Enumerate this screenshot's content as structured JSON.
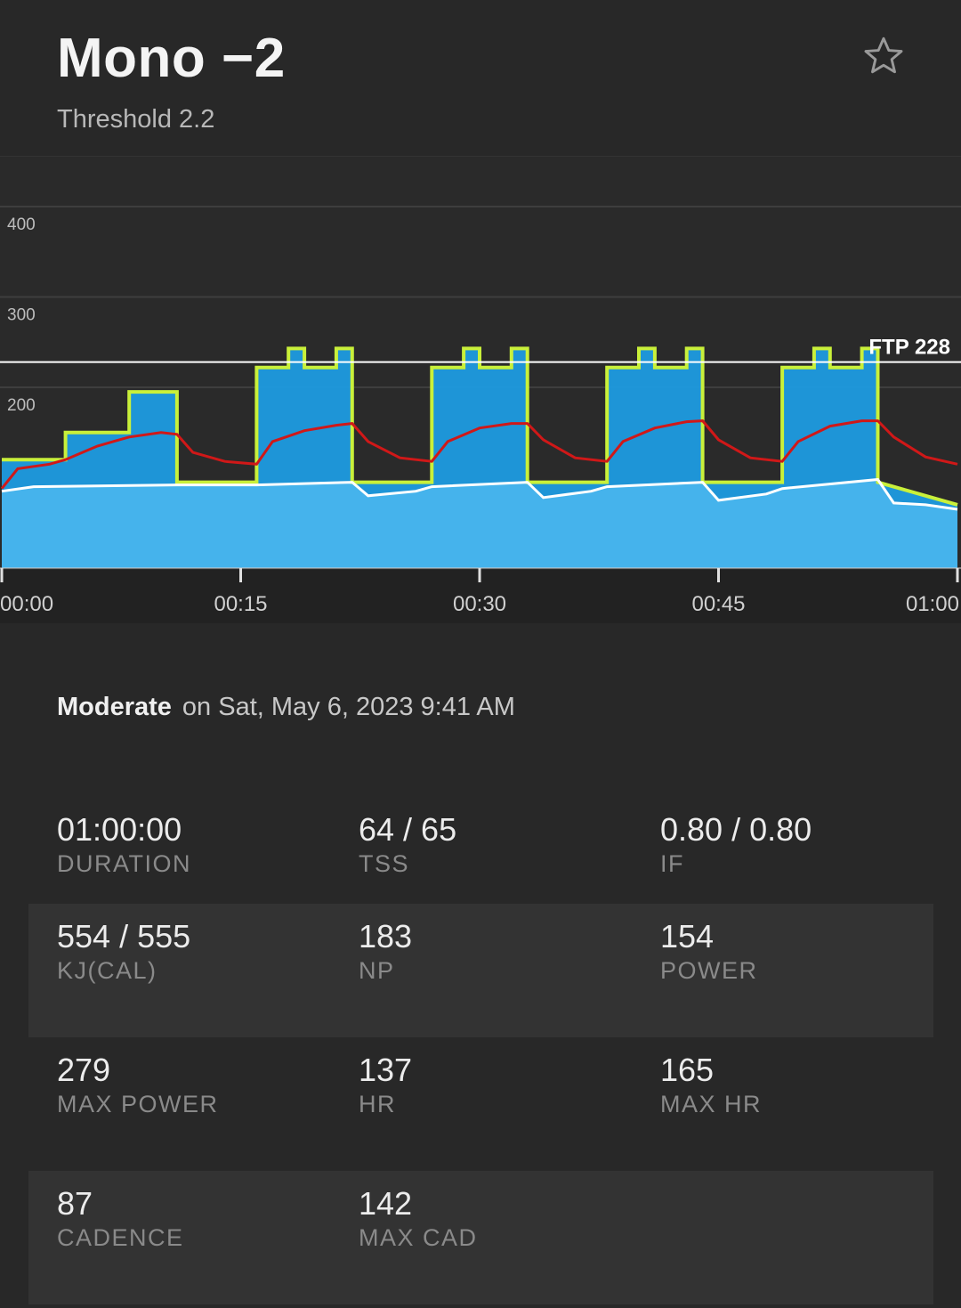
{
  "workout": {
    "title": "Mono −2",
    "subtitle": "Threshold 2.2",
    "intensity": "Moderate",
    "date_text": "on Sat, May 6, 2023 9:41 AM"
  },
  "icons": {
    "favorite": "star-outline-icon"
  },
  "colors": {
    "background": "#282828",
    "power_area": "#45b3ec",
    "interval_area": "#1e9be0",
    "target_outline": "#c9f03a",
    "heart_rate": "#d01818",
    "cadence": "#ffffff",
    "ftp_line": "#ffffff"
  },
  "chart_data": {
    "type": "area",
    "x_unit": "minutes",
    "xlim": [
      0,
      60
    ],
    "ylim": [
      0,
      400
    ],
    "y_ticks": [
      "400",
      "300",
      "200"
    ],
    "x_ticks": [
      "00:00",
      "00:15",
      "00:30",
      "00:45",
      "01:00"
    ],
    "ftp_label": "FTP 228",
    "ftp_value": 228,
    "grid": true,
    "series": [
      {
        "kind": "target_power",
        "points": [
          [
            0,
            120
          ],
          [
            4,
            120
          ],
          [
            4,
            150
          ],
          [
            8,
            150
          ],
          [
            8,
            195
          ],
          [
            11,
            195
          ],
          [
            11,
            95
          ],
          [
            16,
            95
          ],
          [
            16,
            222
          ],
          [
            18,
            222
          ],
          [
            18,
            243
          ],
          [
            19,
            243
          ],
          [
            19,
            222
          ],
          [
            21,
            222
          ],
          [
            21,
            243
          ],
          [
            22,
            243
          ],
          [
            22,
            95
          ],
          [
            27,
            95
          ],
          [
            27,
            222
          ],
          [
            29,
            222
          ],
          [
            29,
            243
          ],
          [
            30,
            243
          ],
          [
            30,
            222
          ],
          [
            32,
            222
          ],
          [
            32,
            243
          ],
          [
            33,
            243
          ],
          [
            33,
            95
          ],
          [
            38,
            95
          ],
          [
            38,
            222
          ],
          [
            40,
            222
          ],
          [
            40,
            243
          ],
          [
            41,
            243
          ],
          [
            41,
            222
          ],
          [
            43,
            222
          ],
          [
            43,
            243
          ],
          [
            44,
            243
          ],
          [
            44,
            95
          ],
          [
            49,
            95
          ],
          [
            49,
            222
          ],
          [
            51,
            222
          ],
          [
            51,
            243
          ],
          [
            52,
            243
          ],
          [
            52,
            222
          ],
          [
            54,
            222
          ],
          [
            54,
            243
          ],
          [
            55,
            243
          ],
          [
            55,
            95
          ],
          [
            60,
            70
          ]
        ]
      },
      {
        "kind": "heart_rate",
        "points": [
          [
            0,
            88
          ],
          [
            1,
            110
          ],
          [
            3,
            115
          ],
          [
            4,
            120
          ],
          [
            6,
            135
          ],
          [
            8,
            145
          ],
          [
            10,
            150
          ],
          [
            11,
            148
          ],
          [
            12,
            128
          ],
          [
            14,
            118
          ],
          [
            16,
            115
          ],
          [
            17,
            140
          ],
          [
            19,
            152
          ],
          [
            21,
            158
          ],
          [
            22,
            160
          ],
          [
            23,
            140
          ],
          [
            25,
            122
          ],
          [
            27,
            118
          ],
          [
            28,
            140
          ],
          [
            30,
            155
          ],
          [
            32,
            160
          ],
          [
            33,
            160
          ],
          [
            34,
            142
          ],
          [
            36,
            122
          ],
          [
            38,
            118
          ],
          [
            39,
            140
          ],
          [
            41,
            155
          ],
          [
            43,
            162
          ],
          [
            44,
            163
          ],
          [
            45,
            142
          ],
          [
            47,
            122
          ],
          [
            49,
            118
          ],
          [
            50,
            140
          ],
          [
            52,
            157
          ],
          [
            54,
            163
          ],
          [
            55,
            163
          ],
          [
            56,
            145
          ],
          [
            58,
            123
          ],
          [
            60,
            115
          ]
        ]
      },
      {
        "kind": "cadence",
        "points": [
          [
            0,
            85
          ],
          [
            2,
            90
          ],
          [
            11,
            92
          ],
          [
            16,
            92
          ],
          [
            22,
            95
          ],
          [
            23,
            80
          ],
          [
            26,
            85
          ],
          [
            27,
            90
          ],
          [
            33,
            95
          ],
          [
            34,
            78
          ],
          [
            37,
            85
          ],
          [
            38,
            90
          ],
          [
            44,
            95
          ],
          [
            45,
            75
          ],
          [
            48,
            82
          ],
          [
            49,
            88
          ],
          [
            55,
            98
          ],
          [
            56,
            72
          ],
          [
            58,
            70
          ],
          [
            60,
            65
          ]
        ]
      }
    ]
  },
  "stats": [
    {
      "value": "01:00:00",
      "label": "DURATION"
    },
    {
      "value": "64 / 65",
      "label": "TSS"
    },
    {
      "value": "0.80 / 0.80",
      "label": "IF"
    },
    {
      "value": "554 / 555",
      "label": "KJ(CAL)"
    },
    {
      "value": "183",
      "label": "NP"
    },
    {
      "value": "154",
      "label": "POWER"
    },
    {
      "value": "279",
      "label": "MAX POWER"
    },
    {
      "value": "137",
      "label": "HR"
    },
    {
      "value": "165",
      "label": "MAX HR"
    },
    {
      "value": "87",
      "label": "CADENCE"
    },
    {
      "value": "142",
      "label": "MAX CAD"
    }
  ]
}
